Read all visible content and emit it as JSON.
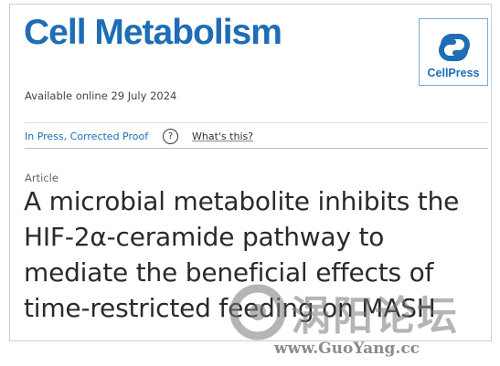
{
  "header": {
    "journal": "Cell Metabolism",
    "publisher": "CellPress"
  },
  "meta": {
    "available": "Available online 29 July 2024"
  },
  "status": {
    "label": "In Press, Corrected Proof",
    "help_icon": "?",
    "whats_this": "What's this?"
  },
  "article": {
    "type": "Article",
    "title_lines": [
      "A microbial metabolite inhibits the",
      "HIF-2α-ceramide pathway to",
      "mediate the beneficial effects of",
      "time-restricted feeding on MASH"
    ]
  },
  "watermark": {
    "name": "涡阳论坛",
    "url": "www.GuoYang.cc"
  }
}
